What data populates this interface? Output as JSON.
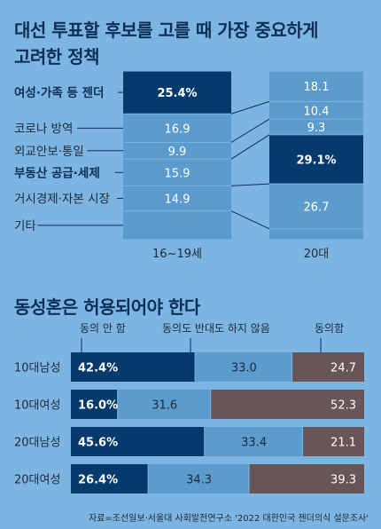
{
  "colors": {
    "background": "#7cb5e2",
    "dark_blue": "#063a6c",
    "mid_blue": "#5c9bcd",
    "brown": "#675558",
    "title": "#0d2f57",
    "text": "#1f2a36"
  },
  "chart_data": [
    {
      "type": "bar",
      "stacked": true,
      "orientation": "vertical",
      "title": "대선 투표할 후보를 고를 때 가장 중요하게 고려한 정책",
      "title_lines": [
        "대선 투표할 후보를 고를 때 가장 중요하게",
        "고려한 정책"
      ],
      "categories": [
        "16~19세",
        "20대"
      ],
      "series": [
        {
          "name": "여성·가족 등 젠더",
          "values": [
            25.4,
            18.1
          ],
          "bold": true
        },
        {
          "name": "코로나 방역",
          "values": [
            16.9,
            10.4
          ],
          "bold": false
        },
        {
          "name": "외교안보·통일",
          "values": [
            9.9,
            9.3
          ],
          "bold": false
        },
        {
          "name": "부동산 공급·세제",
          "values": [
            15.9,
            29.1
          ],
          "bold": true
        },
        {
          "name": "거시경제·자본 시장",
          "values": [
            14.9,
            26.7
          ],
          "bold": false
        },
        {
          "name": "기타",
          "values": [
            null,
            null
          ],
          "bold": false
        }
      ],
      "value_labels": [
        [
          "25.4%",
          "16.9",
          "9.9",
          "15.9",
          "14.9"
        ],
        [
          "18.1",
          "10.4",
          "9.3",
          "29.1%",
          "26.7"
        ]
      ],
      "highlight": [
        0,
        3
      ]
    },
    {
      "type": "bar",
      "stacked": true,
      "orientation": "horizontal",
      "title": "동성혼은 허용되어야 한다",
      "categories": [
        "10대남성",
        "10대여성",
        "20대남성",
        "20대여성"
      ],
      "series": [
        {
          "name": "동의 안 함",
          "values": [
            42.4,
            16.0,
            45.6,
            26.4
          ],
          "color": "#063a6c"
        },
        {
          "name": "동의도 반대도 하지 않음",
          "values": [
            33.0,
            31.6,
            33.4,
            34.3
          ],
          "color": "#5c9bcd"
        },
        {
          "name": "동의함",
          "values": [
            24.7,
            52.3,
            21.1,
            39.3
          ],
          "color": "#675558"
        }
      ],
      "value_labels": [
        [
          "42.4%",
          "33.0",
          "24.7"
        ],
        [
          "16.0%",
          "31.6",
          "52.3"
        ],
        [
          "45.6%",
          "33.4",
          "21.1"
        ],
        [
          "26.4%",
          "34.3",
          "39.3"
        ]
      ]
    }
  ],
  "source": "자료=조선일보·서울대 사회발전연구소 '2022 대한민국 젠더의식 설문조사'"
}
